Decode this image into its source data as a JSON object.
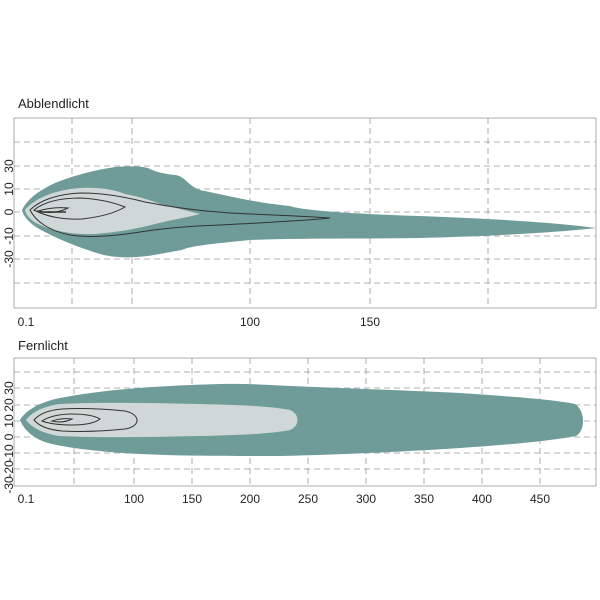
{
  "chart_data": [
    {
      "type": "area",
      "title": "Abblendlicht",
      "xlabel": "",
      "ylabel": "",
      "x_ticks": [
        "0.1",
        "100",
        "150"
      ],
      "y_ticks": [
        "30",
        "10",
        "0",
        "-10",
        "-30"
      ],
      "colors": {
        "outer": "#6f9c99",
        "inner": "#cfd8d6",
        "line": "#333333",
        "grid": "#999999"
      },
      "grid": true
    },
    {
      "type": "area",
      "title": "Fernlicht",
      "xlabel": "",
      "ylabel": "",
      "x_ticks": [
        "0.1",
        "100",
        "150",
        "200",
        "250",
        "300",
        "350",
        "400",
        "450"
      ],
      "y_ticks": [
        "30",
        "20",
        "10",
        "0",
        "-10",
        "-20",
        "-30"
      ],
      "colors": {
        "outer": "#6f9c99",
        "inner": "#cfd8d6",
        "line": "#333333",
        "grid": "#999999"
      },
      "grid": true
    }
  ]
}
